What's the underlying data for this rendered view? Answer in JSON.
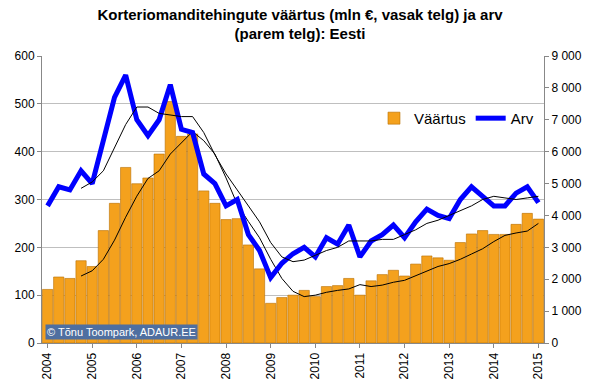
{
  "chart_data": {
    "type": "bar",
    "title": "Korteriomanditehingute väärtus (mln €, vasak telg) ja arv\n(parem telg): Eesti",
    "categories": [
      "2004",
      null,
      null,
      null,
      "2005",
      null,
      null,
      null,
      "2006",
      null,
      null,
      null,
      "2007",
      null,
      null,
      null,
      "2008",
      null,
      null,
      null,
      "2009",
      null,
      null,
      null,
      "2010",
      null,
      null,
      null,
      "2011",
      null,
      null,
      null,
      "2012",
      null,
      null,
      null,
      "2013",
      null,
      null,
      null,
      "2014",
      null,
      null,
      null,
      "2015"
    ],
    "series": [
      {
        "name": "Väärtus",
        "type": "bar",
        "color": "#f4a11d",
        "values": [
          112,
          138,
          135,
          172,
          160,
          235,
          292,
          367,
          333,
          345,
          395,
          505,
          432,
          437,
          318,
          292,
          258,
          260,
          205,
          155,
          83,
          95,
          100,
          110,
          97,
          118,
          120,
          135,
          100,
          130,
          143,
          152,
          140,
          165,
          182,
          178,
          173,
          210,
          228,
          235,
          227,
          227,
          248,
          271,
          259
        ]
      },
      {
        "type": "line",
        "color": "#000000",
        "line_style": "thin",
        "values": [
          null,
          null,
          null,
          140,
          151,
          175,
          215,
          263,
          307,
          344,
          360,
          395,
          419,
          442,
          423,
          395,
          345,
          290,
          254,
          220,
          175,
          135,
          108,
          97,
          100,
          106,
          110,
          113,
          122,
          118,
          121,
          127,
          131,
          141,
          150,
          160,
          166,
          175,
          186,
          197,
          212,
          225,
          230,
          234,
          250
        ]
      },
      {
        "name": "Arv",
        "type": "line",
        "color": "#0000ff",
        "line_style": "thick",
        "axis": "y2",
        "values": [
          4300,
          4900,
          4800,
          5400,
          5000,
          6300,
          7700,
          8400,
          7000,
          6500,
          7000,
          8100,
          6700,
          6600,
          5300,
          5000,
          4300,
          4500,
          3400,
          2900,
          2050,
          2500,
          2800,
          3000,
          2700,
          3300,
          3100,
          3700,
          2700,
          3200,
          3400,
          3700,
          3300,
          3800,
          4200,
          4000,
          3900,
          4500,
          4900,
          4600,
          4300,
          4300,
          4700,
          4900,
          4400
        ]
      },
      {
        "type": "line",
        "color": "#000000",
        "line_style": "thin",
        "axis": "y2",
        "values": [
          null,
          null,
          null,
          4850,
          5050,
          5400,
          6100,
          6850,
          7400,
          7400,
          7200,
          7150,
          7100,
          7100,
          6600,
          5900,
          5300,
          4800,
          4300,
          3800,
          3150,
          2700,
          2550,
          2600,
          2750,
          2900,
          3000,
          3200,
          3200,
          3200,
          3250,
          3250,
          3400,
          3550,
          3750,
          3850,
          4000,
          4150,
          4300,
          4500,
          4600,
          4550,
          4500,
          4550,
          4600
        ]
      }
    ],
    "ylim": [
      0,
      600
    ],
    "yticks": [
      0,
      100,
      200,
      300,
      400,
      500,
      600
    ],
    "y2lim": [
      0,
      9000
    ],
    "y2ticks": [
      0,
      {
        "value": 1000,
        "label": "1 000"
      },
      {
        "value": 2000,
        "label": "2 000"
      },
      {
        "value": 3000,
        "label": "3 000"
      },
      {
        "value": 4000,
        "label": "4 000"
      },
      {
        "value": 5000,
        "label": "5 000"
      },
      {
        "value": 6000,
        "label": "6 000"
      },
      {
        "value": 7000,
        "label": "7 000"
      },
      {
        "value": 8000,
        "label": "8 000"
      },
      {
        "value": 9000,
        "label": "9 000"
      }
    ],
    "grid": true,
    "legend": "upper right",
    "annotations": [
      {
        "text": "© Tõnu Toompark, ADAUR.EE"
      }
    ]
  }
}
